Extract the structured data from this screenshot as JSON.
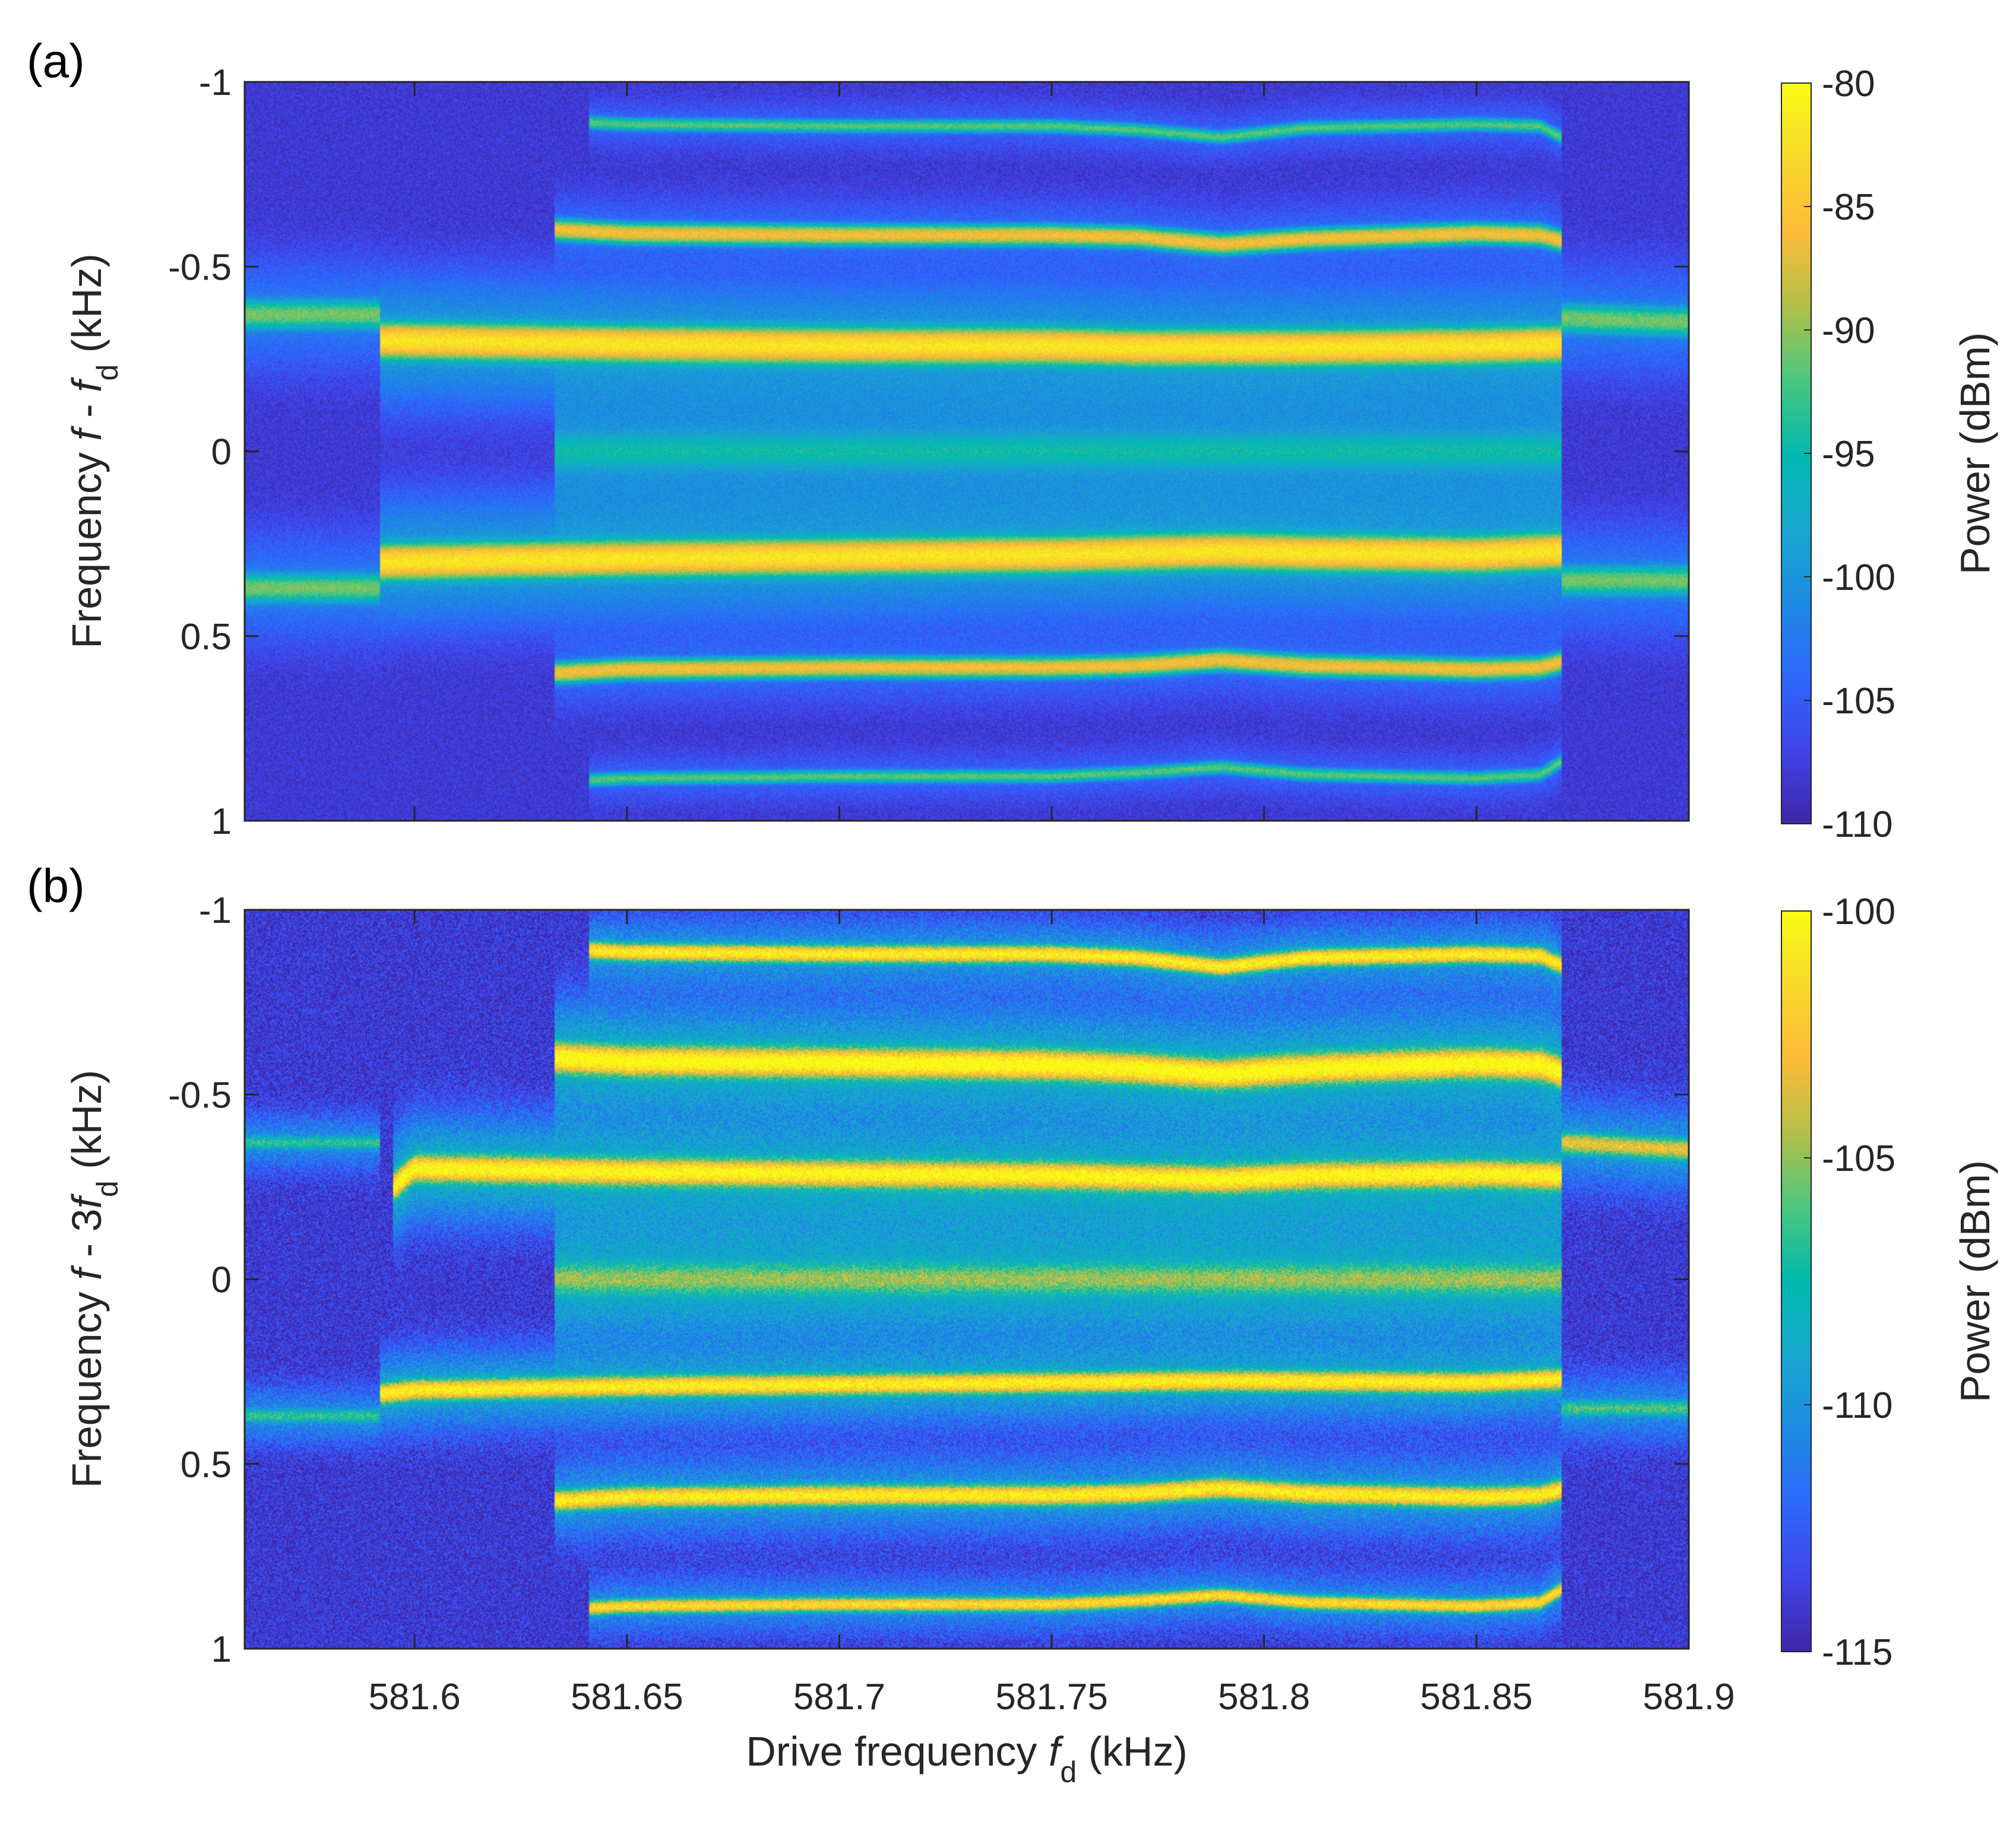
{
  "colormap": [
    "#3e26a8",
    "#4044e9",
    "#2d68fc",
    "#1c8ae1",
    "#19a8cf",
    "#00b9ae",
    "#4bc77e",
    "#b3bf49",
    "#fdbb38",
    "#f8d92b",
    "#f9fb15"
  ],
  "xaxis": {
    "label_prefix": "Drive frequency ",
    "label_var": "f",
    "label_sub": "d",
    "label_suffix": " (kHz)",
    "range": [
      581.56,
      581.9
    ],
    "ticks": [
      581.6,
      581.65,
      581.7,
      581.75,
      581.8,
      581.85,
      581.9
    ],
    "tick_labels": [
      "581.6",
      "581.65",
      "581.7",
      "581.75",
      "581.8",
      "581.85",
      "581.9"
    ]
  },
  "colorbar_label": "Power (dBm)",
  "chart_data": [
    {
      "type": "heatmap",
      "panel_label": "(a)",
      "ylabel_prefix": "Frequency ",
      "ylabel_var": "f",
      "ylabel_mid": " - ",
      "ylabel_var2": "f",
      "ylabel_sub": "d",
      "ylabel_suffix": " (kHz)",
      "ylim": [
        -1,
        1
      ],
      "y_reversed": true,
      "yticks": [
        -1,
        -0.5,
        0,
        0.5,
        1
      ],
      "ytick_labels": [
        "-1",
        "-0.5",
        "0",
        "0.5",
        "1"
      ],
      "colorbar_range": [
        -110,
        -80
      ],
      "colorbar_ticks": [
        -80,
        -85,
        -90,
        -95,
        -100,
        -105,
        -110
      ],
      "colorbar_tick_labels": [
        "-80",
        "-85",
        "-90",
        "-95",
        "-100",
        "-105",
        "-110"
      ],
      "background_dbm": -108,
      "bands": [
        {
          "name": "sideband-outer-left-upper",
          "x": [
            581.56,
            581.592
          ],
          "y": [
            -0.37,
            -0.37
          ],
          "peak": -91,
          "width": 0.018,
          "halo": -104
        },
        {
          "name": "sideband-outer-left-lower",
          "x": [
            581.56,
            581.592
          ],
          "y": [
            0.37,
            0.37
          ],
          "peak": -91,
          "width": 0.018,
          "halo": -104
        },
        {
          "name": "sideband-outer-right-upper",
          "x": [
            581.87,
            581.9
          ],
          "y": [
            -0.36,
            -0.35
          ],
          "peak": -91,
          "width": 0.018,
          "halo": -104
        },
        {
          "name": "sideband-outer-right-lower",
          "x": [
            581.87,
            581.9
          ],
          "y": [
            0.35,
            0.35
          ],
          "peak": -91,
          "width": 0.018,
          "halo": -104
        },
        {
          "name": "sideband-1-upper",
          "x": [
            581.592,
            581.65,
            581.7,
            581.75,
            581.77,
            581.79,
            581.81,
            581.85,
            581.87
          ],
          "y": [
            -0.3,
            -0.29,
            -0.285,
            -0.285,
            -0.28,
            -0.28,
            -0.28,
            -0.285,
            -0.29
          ],
          "peak": -82,
          "width": 0.02,
          "halo": -100
        },
        {
          "name": "sideband-1-lower",
          "x": [
            581.592,
            581.65,
            581.7,
            581.75,
            581.77,
            581.79,
            581.81,
            581.85,
            581.87
          ],
          "y": [
            0.3,
            0.29,
            0.285,
            0.28,
            0.275,
            0.27,
            0.275,
            0.28,
            0.27
          ],
          "peak": -82,
          "width": 0.02,
          "halo": -100
        },
        {
          "name": "sideband-2-upper",
          "x": [
            581.633,
            581.65,
            581.7,
            581.75,
            581.77,
            581.79,
            581.81,
            581.85,
            581.865,
            581.87
          ],
          "y": [
            -0.6,
            -0.59,
            -0.585,
            -0.585,
            -0.58,
            -0.56,
            -0.575,
            -0.59,
            -0.585,
            -0.57
          ],
          "peak": -86,
          "width": 0.012,
          "halo": -106
        },
        {
          "name": "sideband-2-lower",
          "x": [
            581.633,
            581.65,
            581.7,
            581.75,
            581.77,
            581.79,
            581.81,
            581.85,
            581.865,
            581.87
          ],
          "y": [
            0.6,
            0.59,
            0.585,
            0.585,
            0.58,
            0.565,
            0.58,
            0.59,
            0.585,
            0.57
          ],
          "peak": -86,
          "width": 0.012,
          "halo": -106
        },
        {
          "name": "sideband-3-upper",
          "x": [
            581.641,
            581.65,
            581.7,
            581.75,
            581.77,
            581.79,
            581.81,
            581.85,
            581.865,
            581.87
          ],
          "y": [
            -0.89,
            -0.885,
            -0.88,
            -0.88,
            -0.87,
            -0.85,
            -0.875,
            -0.885,
            -0.88,
            -0.85
          ],
          "peak": -92,
          "width": 0.008,
          "halo": -107
        },
        {
          "name": "sideband-3-lower",
          "x": [
            581.641,
            581.65,
            581.7,
            581.75,
            581.77,
            581.79,
            581.81,
            581.85,
            581.865,
            581.87
          ],
          "y": [
            0.89,
            0.885,
            0.88,
            0.88,
            0.87,
            0.855,
            0.875,
            0.885,
            0.875,
            0.84
          ],
          "peak": -92,
          "width": 0.008,
          "halo": -107
        },
        {
          "name": "carrier-centre",
          "x": [
            581.633,
            581.7,
            581.75,
            581.79,
            581.87
          ],
          "y": [
            0,
            0,
            0,
            0,
            0
          ],
          "peak": -96,
          "width": 0.025,
          "halo": -101
        }
      ]
    },
    {
      "type": "heatmap",
      "panel_label": "(b)",
      "ylabel_prefix": "Frequency ",
      "ylabel_var": "f",
      "ylabel_mid": " - 3",
      "ylabel_var2": "f",
      "ylabel_sub": "d",
      "ylabel_suffix": " (kHz)",
      "ylim": [
        -1,
        1
      ],
      "y_reversed": true,
      "yticks": [
        -1,
        -0.5,
        0,
        0.5,
        1
      ],
      "ytick_labels": [
        "-1",
        "-0.5",
        "0",
        "0.5",
        "1"
      ],
      "colorbar_range": [
        -115,
        -100
      ],
      "colorbar_ticks": [
        -100,
        -105,
        -110,
        -115
      ],
      "colorbar_tick_labels": [
        "-100",
        "-105",
        "-110",
        "-115"
      ],
      "background_dbm": -114,
      "bands": [
        {
          "name": "sideband-outer-left-upper",
          "x": [
            581.56,
            581.592
          ],
          "y": [
            -0.37,
            -0.37
          ],
          "peak": -109,
          "width": 0.01,
          "halo": -113
        },
        {
          "name": "sideband-outer-left-lower",
          "x": [
            581.56,
            581.592
          ],
          "y": [
            0.37,
            0.37
          ],
          "peak": -109,
          "width": 0.01,
          "halo": -113
        },
        {
          "name": "sideband-outer-right-upper",
          "x": [
            581.87,
            581.9
          ],
          "y": [
            -0.37,
            -0.35
          ],
          "peak": -104,
          "width": 0.015,
          "halo": -112
        },
        {
          "name": "sideband-outer-right-lower",
          "x": [
            581.87,
            581.9
          ],
          "y": [
            0.35,
            0.35
          ],
          "peak": -108,
          "width": 0.012,
          "halo": -113
        },
        {
          "name": "sideband-1-upper",
          "x": [
            581.595,
            581.6,
            581.65,
            581.7,
            581.75,
            581.77,
            581.79,
            581.81,
            581.85,
            581.87
          ],
          "y": [
            -0.25,
            -0.3,
            -0.29,
            -0.285,
            -0.28,
            -0.275,
            -0.27,
            -0.28,
            -0.285,
            -0.28
          ],
          "peak": -100.5,
          "width": 0.018,
          "halo": -110
        },
        {
          "name": "sideband-1-lower",
          "x": [
            581.592,
            581.6,
            581.65,
            581.7,
            581.75,
            581.79,
            581.85,
            581.87
          ],
          "y": [
            0.31,
            0.3,
            0.29,
            0.285,
            0.28,
            0.275,
            0.28,
            0.27
          ],
          "peak": -101,
          "width": 0.014,
          "halo": -111
        },
        {
          "name": "sideband-2-upper",
          "x": [
            581.633,
            581.65,
            581.7,
            581.75,
            581.77,
            581.79,
            581.81,
            581.85,
            581.865,
            581.87
          ],
          "y": [
            -0.6,
            -0.59,
            -0.585,
            -0.58,
            -0.57,
            -0.555,
            -0.57,
            -0.585,
            -0.58,
            -0.56
          ],
          "peak": -100,
          "width": 0.02,
          "halo": -110
        },
        {
          "name": "sideband-2-lower",
          "x": [
            581.633,
            581.65,
            581.7,
            581.75,
            581.77,
            581.79,
            581.81,
            581.85,
            581.865,
            581.87
          ],
          "y": [
            0.6,
            0.59,
            0.585,
            0.585,
            0.58,
            0.565,
            0.58,
            0.59,
            0.585,
            0.57
          ],
          "peak": -101,
          "width": 0.014,
          "halo": -112
        },
        {
          "name": "sideband-3-upper",
          "x": [
            581.641,
            581.65,
            581.7,
            581.75,
            581.77,
            581.79,
            581.81,
            581.85,
            581.865,
            581.87
          ],
          "y": [
            -0.89,
            -0.885,
            -0.88,
            -0.88,
            -0.87,
            -0.845,
            -0.87,
            -0.88,
            -0.875,
            -0.85
          ],
          "peak": -101,
          "width": 0.012,
          "halo": -112
        },
        {
          "name": "sideband-3-lower",
          "x": [
            581.641,
            581.65,
            581.7,
            581.75,
            581.77,
            581.79,
            581.81,
            581.85,
            581.865,
            581.87
          ],
          "y": [
            0.89,
            0.885,
            0.88,
            0.88,
            0.87,
            0.855,
            0.875,
            0.885,
            0.875,
            0.84
          ],
          "peak": -102,
          "width": 0.01,
          "halo": -113
        },
        {
          "name": "carrier-centre",
          "x": [
            581.633,
            581.7,
            581.75,
            581.79,
            581.87
          ],
          "y": [
            0,
            0,
            0,
            0,
            0
          ],
          "peak": -107,
          "width": 0.022,
          "halo": -110
        }
      ]
    }
  ]
}
